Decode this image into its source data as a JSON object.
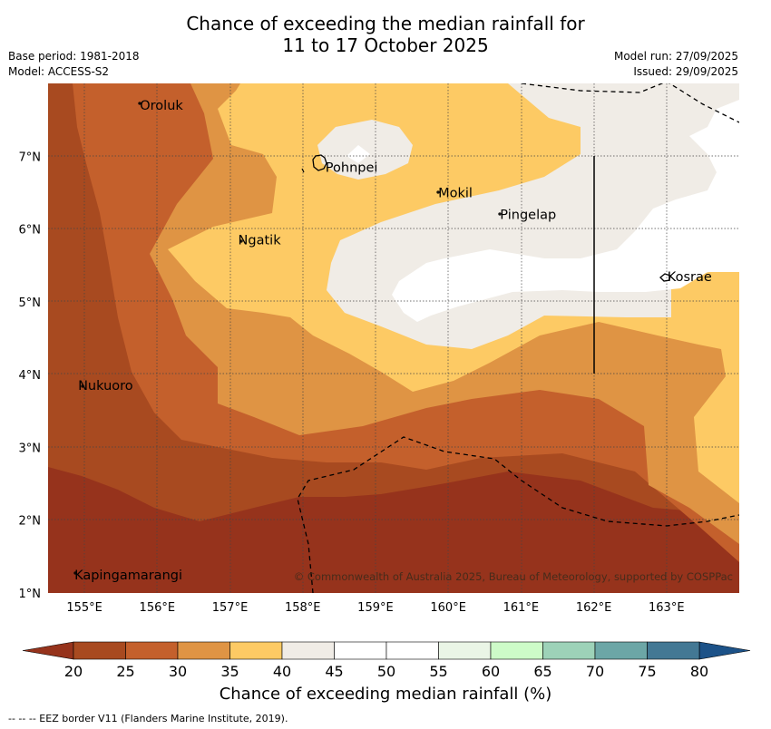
{
  "title": {
    "line1": "Chance of exceeding the median rainfall for",
    "line2": "11 to 17 October 2025"
  },
  "meta": {
    "base_period": "Base period: 1981-2018",
    "model": "Model: ACCESS-S2",
    "model_run": "Model run: 27/09/2025",
    "issued": "Issued: 29/09/2025"
  },
  "map": {
    "lon_ticks": [
      "155°E",
      "156°E",
      "157°E",
      "158°E",
      "159°E",
      "160°E",
      "161°E",
      "162°E",
      "163°E"
    ],
    "lat_ticks": [
      "1°N",
      "2°N",
      "3°N",
      "4°N",
      "5°N",
      "6°N",
      "7°N"
    ],
    "places": [
      {
        "name": "Oroluk",
        "lon": 155.75,
        "lat": 7.7
      },
      {
        "name": "Pohnpei",
        "lon": 158.3,
        "lat": 6.85
      },
      {
        "name": "Mokil",
        "lon": 159.85,
        "lat": 6.5
      },
      {
        "name": "Pingelap",
        "lon": 160.7,
        "lat": 6.2
      },
      {
        "name": "Ngatik",
        "lon": 157.1,
        "lat": 5.85
      },
      {
        "name": "Kosrae",
        "lon": 163.0,
        "lat": 5.35
      },
      {
        "name": "Nukuoro",
        "lon": 154.9,
        "lat": 3.85
      },
      {
        "name": "Kapingamarangi",
        "lon": 154.85,
        "lat": 1.25
      }
    ],
    "copyright": "© Commonwealth of Australia 2025, Bureau of Meteorology, supported by COSPPac"
  },
  "colorbar": {
    "ticks": [
      "20",
      "25",
      "30",
      "35",
      "40",
      "45",
      "50",
      "55",
      "60",
      "65",
      "70",
      "75",
      "80"
    ],
    "label": "Chance of exceeding median rainfall (%)",
    "colors": [
      "#a84a20",
      "#c4602c",
      "#df9444",
      "#fdca64",
      "#f0ece6",
      "#ffffff",
      "#ffffff",
      "#eaf5e6",
      "#cdfbc8",
      "#9dd2b8",
      "#6ca6a6",
      "#437894"
    ],
    "under_color": "#96331c",
    "over_color": "#1c5288"
  },
  "footnote": "--  --  -- EEZ border V11 (Flanders Marine Institute, 2019)."
}
